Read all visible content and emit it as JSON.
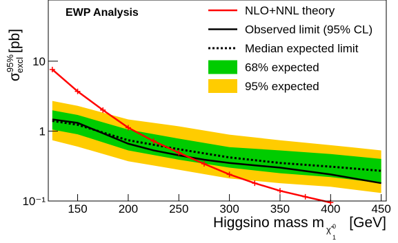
{
  "chart_data": {
    "type": "limit",
    "annotation": "EWP Analysis",
    "y_label": {
      "symbol": "σ",
      "sup": "95%",
      "sub": "excl",
      "unit": "[pb]"
    },
    "x_label": {
      "text": "Higgsino mass m",
      "sub": "χ̃",
      "sub_sup": "0",
      "sub_sub": "1",
      "unit": "[GeV]"
    },
    "xlim": [
      121,
      455
    ],
    "xticks": [
      150,
      200,
      250,
      300,
      350,
      400,
      450
    ],
    "ylim": [
      0.1,
      75
    ],
    "log_y": true,
    "yticks": [
      {
        "value": 0.1,
        "label": "10⁻¹"
      },
      1,
      10
    ],
    "legend": "upper right",
    "series": [
      {
        "name": "NLO+NNL theory",
        "kind": "line",
        "color": "#ff0000",
        "line_style": "solid",
        "markers": true,
        "x": [
          125,
          150,
          175,
          200,
          225,
          250,
          275,
          300,
          325,
          350,
          375,
          400
        ],
        "values": [
          7.6,
          3.7,
          2.0,
          1.12,
          0.72,
          0.49,
          0.34,
          0.24,
          0.18,
          0.14,
          0.115,
          0.095
        ]
      },
      {
        "name": "Observed limit (95% CL)",
        "kind": "line",
        "color": "#000000",
        "line_style": "solid",
        "x": [
          125,
          150,
          175,
          200,
          225,
          250,
          275,
          300,
          350,
          400,
          450
        ],
        "values": [
          1.47,
          1.31,
          0.93,
          0.66,
          0.53,
          0.45,
          0.39,
          0.35,
          0.3,
          0.24,
          0.18
        ]
      },
      {
        "name": "Median expected limit",
        "kind": "line",
        "color": "#000000",
        "line_style": "dotted",
        "x": [
          125,
          150,
          200,
          250,
          300,
          350,
          400,
          450
        ],
        "values": [
          1.4,
          1.23,
          0.74,
          0.55,
          0.42,
          0.35,
          0.31,
          0.27
        ]
      },
      {
        "name": "68% expected",
        "kind": "band",
        "color": "#00cc00",
        "x": [
          125,
          150,
          200,
          250,
          300,
          350,
          400,
          450
        ],
        "low": [
          1.05,
          0.9,
          0.53,
          0.39,
          0.3,
          0.25,
          0.22,
          0.18
        ],
        "high": [
          1.98,
          1.7,
          1.05,
          0.78,
          0.59,
          0.53,
          0.47,
          0.4
        ]
      },
      {
        "name": "95% expected",
        "kind": "band",
        "color": "#ffcc00",
        "x": [
          125,
          150,
          200,
          250,
          300,
          350,
          400,
          450
        ],
        "low": [
          0.74,
          0.6,
          0.37,
          0.28,
          0.21,
          0.18,
          0.16,
          0.13
        ],
        "high": [
          2.7,
          2.3,
          1.47,
          1.17,
          0.89,
          0.74,
          0.63,
          0.53
        ]
      }
    ]
  }
}
